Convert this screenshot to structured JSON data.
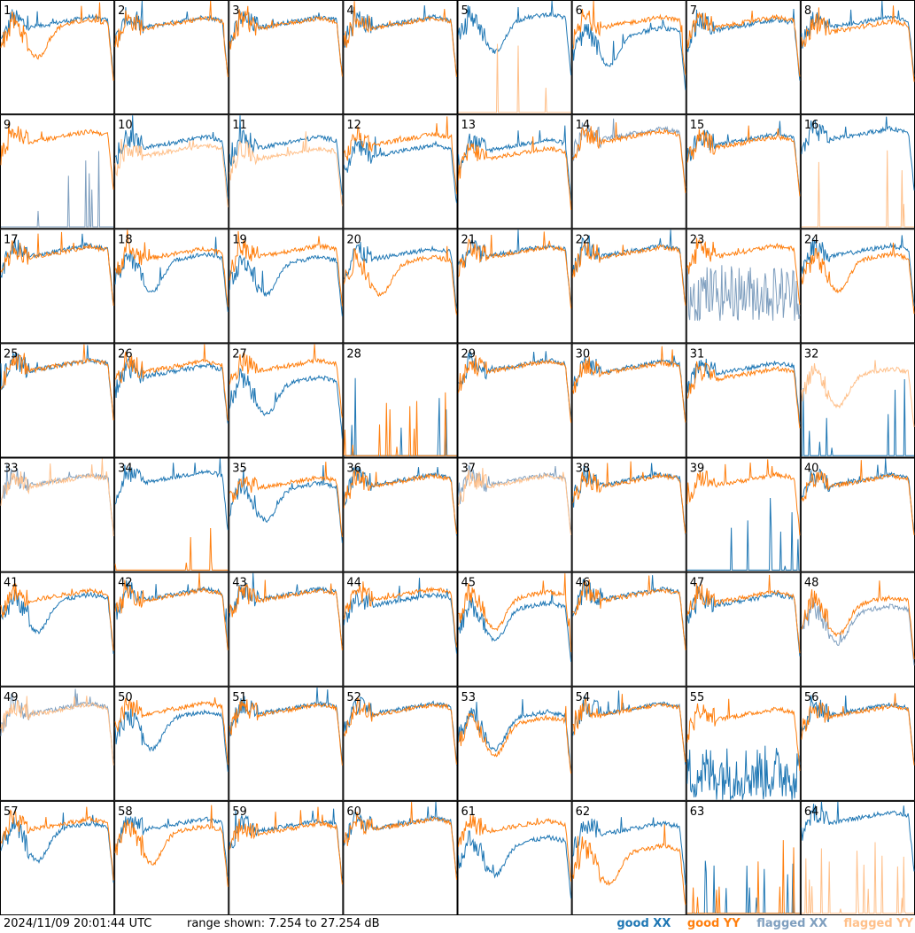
{
  "footer": {
    "timestamp": "2024/11/09 20:01:44 UTC",
    "range_text": "range shown: 7.254 to 27.254 dB",
    "legend": {
      "good_xx": "good XX",
      "good_yy": "good YY",
      "flagged_xx": "flagged XX",
      "flagged_yy": "flagged YY"
    }
  },
  "colors": {
    "good_xx": "#1f77b4",
    "good_yy": "#ff7f0e",
    "flagged_xx": "#7f9fbf",
    "flagged_yy": "#ffc08a"
  },
  "chart_data": {
    "type": "line",
    "rows": 8,
    "cols": 8,
    "ylim": [
      7.254,
      27.254
    ],
    "panels": [
      {
        "n": "1",
        "xx": {
          "s": "good",
          "p": "flat",
          "lvl": 23.0
        },
        "yy": {
          "s": "good",
          "p": "dip",
          "lvl": 22.5
        }
      },
      {
        "n": "2",
        "xx": {
          "s": "good",
          "p": "flat",
          "lvl": 23.0
        },
        "yy": {
          "s": "good",
          "p": "flat",
          "lvl": 22.8
        }
      },
      {
        "n": "3",
        "xx": {
          "s": "good",
          "p": "flat",
          "lvl": 23.0
        },
        "yy": {
          "s": "good",
          "p": "flat",
          "lvl": 22.8
        }
      },
      {
        "n": "4",
        "xx": {
          "s": "good",
          "p": "flat",
          "lvl": 23.0
        },
        "yy": {
          "s": "good",
          "p": "flat",
          "lvl": 22.8
        }
      },
      {
        "n": "5",
        "xx": {
          "s": "good",
          "p": "dip",
          "lvl": 23.5
        },
        "yy": {
          "s": "flagged",
          "p": "spikes",
          "lvl": 9.0
        }
      },
      {
        "n": "6",
        "xx": {
          "s": "good",
          "p": "dip",
          "lvl": 21.0
        },
        "yy": {
          "s": "good",
          "p": "flat",
          "lvl": 23.0
        }
      },
      {
        "n": "7",
        "xx": {
          "s": "good",
          "p": "flat",
          "lvl": 22.5
        },
        "yy": {
          "s": "good",
          "p": "flat",
          "lvl": 23.0
        }
      },
      {
        "n": "8",
        "xx": {
          "s": "good",
          "p": "flat",
          "lvl": 23.0
        },
        "yy": {
          "s": "good",
          "p": "flat",
          "lvl": 22.2
        }
      },
      {
        "n": "9",
        "xx": {
          "s": "flagged",
          "p": "spikes",
          "lvl": 10.0
        },
        "yy": {
          "s": "good",
          "p": "flat",
          "lvl": 23.0
        }
      },
      {
        "n": "10",
        "xx": {
          "s": "good",
          "p": "flat",
          "lvl": 22.0
        },
        "yy": {
          "s": "flagged",
          "p": "flat",
          "lvl": 20.5
        }
      },
      {
        "n": "11",
        "xx": {
          "s": "good",
          "p": "flat",
          "lvl": 22.0
        },
        "yy": {
          "s": "flagged",
          "p": "flat",
          "lvl": 20.0
        }
      },
      {
        "n": "12",
        "xx": {
          "s": "good",
          "p": "flat",
          "lvl": 20.5
        },
        "yy": {
          "s": "good",
          "p": "flat",
          "lvl": 22.5
        }
      },
      {
        "n": "13",
        "xx": {
          "s": "good",
          "p": "flat",
          "lvl": 21.5
        },
        "yy": {
          "s": "good",
          "p": "flat",
          "lvl": 20.0
        }
      },
      {
        "n": "14",
        "xx": {
          "s": "flagged",
          "p": "flat",
          "lvl": 23.5
        },
        "yy": {
          "s": "good",
          "p": "flat",
          "lvl": 23.0
        }
      },
      {
        "n": "15",
        "xx": {
          "s": "good",
          "p": "flat",
          "lvl": 22.5
        },
        "yy": {
          "s": "good",
          "p": "flat",
          "lvl": 22.0
        }
      },
      {
        "n": "16",
        "xx": {
          "s": "good",
          "p": "flat",
          "lvl": 23.5
        },
        "yy": {
          "s": "flagged",
          "p": "spikes",
          "lvl": 9.0
        }
      },
      {
        "n": "17",
        "xx": {
          "s": "good",
          "p": "flat",
          "lvl": 23.0
        },
        "yy": {
          "s": "good",
          "p": "flat",
          "lvl": 22.8
        }
      },
      {
        "n": "18",
        "xx": {
          "s": "good",
          "p": "dip",
          "lvl": 21.5
        },
        "yy": {
          "s": "good",
          "p": "flat",
          "lvl": 22.5
        }
      },
      {
        "n": "19",
        "xx": {
          "s": "good",
          "p": "dip",
          "lvl": 21.0
        },
        "yy": {
          "s": "good",
          "p": "flat",
          "lvl": 23.0
        }
      },
      {
        "n": "20",
        "xx": {
          "s": "good",
          "p": "flat",
          "lvl": 22.5
        },
        "yy": {
          "s": "good",
          "p": "dip",
          "lvl": 21.0
        }
      },
      {
        "n": "21",
        "xx": {
          "s": "good",
          "p": "flat",
          "lvl": 23.0
        },
        "yy": {
          "s": "good",
          "p": "flat",
          "lvl": 22.8
        }
      },
      {
        "n": "22",
        "xx": {
          "s": "good",
          "p": "flat",
          "lvl": 23.0
        },
        "yy": {
          "s": "good",
          "p": "flat",
          "lvl": 22.8
        }
      },
      {
        "n": "23",
        "xx": {
          "s": "flagged",
          "p": "noise",
          "lvl": 16.0
        },
        "yy": {
          "s": "good",
          "p": "flat",
          "lvl": 23.0
        }
      },
      {
        "n": "24",
        "xx": {
          "s": "good",
          "p": "flat",
          "lvl": 23.0
        },
        "yy": {
          "s": "good",
          "p": "dip",
          "lvl": 21.5
        }
      },
      {
        "n": "25",
        "xx": {
          "s": "good",
          "p": "flat",
          "lvl": 23.0
        },
        "yy": {
          "s": "good",
          "p": "flat",
          "lvl": 23.0
        }
      },
      {
        "n": "26",
        "xx": {
          "s": "good",
          "p": "flat",
          "lvl": 22.0
        },
        "yy": {
          "s": "good",
          "p": "flat",
          "lvl": 22.8
        }
      },
      {
        "n": "27",
        "xx": {
          "s": "good",
          "p": "dip",
          "lvl": 20.0
        },
        "yy": {
          "s": "good",
          "p": "flat",
          "lvl": 23.0
        }
      },
      {
        "n": "28",
        "xx": {
          "s": "good",
          "p": "spikes",
          "lvl": 9.0
        },
        "yy": {
          "s": "good",
          "p": "spikes",
          "lvl": 10.0
        }
      },
      {
        "n": "29",
        "xx": {
          "s": "good",
          "p": "flat",
          "lvl": 23.0
        },
        "yy": {
          "s": "good",
          "p": "flat",
          "lvl": 22.8
        }
      },
      {
        "n": "30",
        "xx": {
          "s": "good",
          "p": "flat",
          "lvl": 22.8
        },
        "yy": {
          "s": "good",
          "p": "flat",
          "lvl": 22.5
        }
      },
      {
        "n": "31",
        "xx": {
          "s": "good",
          "p": "flat",
          "lvl": 22.5
        },
        "yy": {
          "s": "good",
          "p": "flat",
          "lvl": 21.5
        }
      },
      {
        "n": "32",
        "xx": {
          "s": "good",
          "p": "spikes",
          "lvl": 9.0
        },
        "yy": {
          "s": "flagged",
          "p": "dip",
          "lvl": 21.5
        }
      },
      {
        "n": "33",
        "xx": {
          "s": "flagged",
          "p": "flat",
          "lvl": 23.0
        },
        "yy": {
          "s": "flagged",
          "p": "flat",
          "lvl": 22.8
        }
      },
      {
        "n": "34",
        "xx": {
          "s": "good",
          "p": "flat",
          "lvl": 23.5
        },
        "yy": {
          "s": "good",
          "p": "spikes",
          "lvl": 10.0
        }
      },
      {
        "n": "35",
        "xx": {
          "s": "good",
          "p": "dip",
          "lvl": 21.5
        },
        "yy": {
          "s": "good",
          "p": "flat",
          "lvl": 22.5
        }
      },
      {
        "n": "36",
        "xx": {
          "s": "good",
          "p": "flat",
          "lvl": 23.0
        },
        "yy": {
          "s": "good",
          "p": "flat",
          "lvl": 22.8
        }
      },
      {
        "n": "37",
        "xx": {
          "s": "flagged",
          "p": "flat",
          "lvl": 23.0
        },
        "yy": {
          "s": "flagged",
          "p": "flat",
          "lvl": 22.8
        }
      },
      {
        "n": "38",
        "xx": {
          "s": "good",
          "p": "flat",
          "lvl": 23.0
        },
        "yy": {
          "s": "good",
          "p": "flat",
          "lvl": 22.8
        }
      },
      {
        "n": "39",
        "xx": {
          "s": "good",
          "p": "spikes",
          "lvl": 9.0
        },
        "yy": {
          "s": "good",
          "p": "flat",
          "lvl": 23.0
        }
      },
      {
        "n": "40",
        "xx": {
          "s": "good",
          "p": "flat",
          "lvl": 23.0
        },
        "yy": {
          "s": "good",
          "p": "flat",
          "lvl": 22.8
        }
      },
      {
        "n": "41",
        "xx": {
          "s": "good",
          "p": "dip",
          "lvl": 22.0
        },
        "yy": {
          "s": "good",
          "p": "flat",
          "lvl": 22.8
        }
      },
      {
        "n": "42",
        "xx": {
          "s": "good",
          "p": "flat",
          "lvl": 23.0
        },
        "yy": {
          "s": "good",
          "p": "flat",
          "lvl": 22.8
        }
      },
      {
        "n": "43",
        "xx": {
          "s": "good",
          "p": "flat",
          "lvl": 23.0
        },
        "yy": {
          "s": "good",
          "p": "flat",
          "lvl": 22.8
        }
      },
      {
        "n": "44",
        "xx": {
          "s": "good",
          "p": "flat",
          "lvl": 22.0
        },
        "yy": {
          "s": "good",
          "p": "flat",
          "lvl": 23.0
        }
      },
      {
        "n": "45",
        "xx": {
          "s": "good",
          "p": "dip",
          "lvl": 20.5
        },
        "yy": {
          "s": "good",
          "p": "dip",
          "lvl": 22.5
        }
      },
      {
        "n": "46",
        "xx": {
          "s": "good",
          "p": "flat",
          "lvl": 23.0
        },
        "yy": {
          "s": "good",
          "p": "flat",
          "lvl": 22.8
        }
      },
      {
        "n": "47",
        "xx": {
          "s": "good",
          "p": "flat",
          "lvl": 22.0
        },
        "yy": {
          "s": "good",
          "p": "flat",
          "lvl": 22.5
        }
      },
      {
        "n": "48",
        "xx": {
          "s": "flagged",
          "p": "dip",
          "lvl": 20.0
        },
        "yy": {
          "s": "good",
          "p": "dip",
          "lvl": 21.5
        }
      },
      {
        "n": "49",
        "xx": {
          "s": "flagged",
          "p": "flat",
          "lvl": 23.0
        },
        "yy": {
          "s": "flagged",
          "p": "flat",
          "lvl": 22.8
        }
      },
      {
        "n": "50",
        "xx": {
          "s": "good",
          "p": "dip",
          "lvl": 21.5
        },
        "yy": {
          "s": "good",
          "p": "flat",
          "lvl": 23.0
        }
      },
      {
        "n": "51",
        "xx": {
          "s": "good",
          "p": "flat",
          "lvl": 23.0
        },
        "yy": {
          "s": "good",
          "p": "flat",
          "lvl": 22.8
        }
      },
      {
        "n": "52",
        "xx": {
          "s": "good",
          "p": "flat",
          "lvl": 23.0
        },
        "yy": {
          "s": "good",
          "p": "flat",
          "lvl": 22.8
        }
      },
      {
        "n": "53",
        "xx": {
          "s": "good",
          "p": "dip",
          "lvl": 21.5
        },
        "yy": {
          "s": "good",
          "p": "dip",
          "lvl": 20.5
        }
      },
      {
        "n": "54",
        "xx": {
          "s": "good",
          "p": "flat",
          "lvl": 23.0
        },
        "yy": {
          "s": "good",
          "p": "flat",
          "lvl": 22.8
        }
      },
      {
        "n": "55",
        "xx": {
          "s": "good",
          "p": "noise",
          "lvl": 12.0
        },
        "yy": {
          "s": "good",
          "p": "flat",
          "lvl": 22.0
        }
      },
      {
        "n": "56",
        "xx": {
          "s": "good",
          "p": "flat",
          "lvl": 22.8
        },
        "yy": {
          "s": "good",
          "p": "flat",
          "lvl": 22.5
        }
      },
      {
        "n": "57",
        "xx": {
          "s": "good",
          "p": "dip",
          "lvl": 22.0
        },
        "yy": {
          "s": "good",
          "p": "flat",
          "lvl": 22.8
        }
      },
      {
        "n": "58",
        "xx": {
          "s": "good",
          "p": "flat",
          "lvl": 22.8
        },
        "yy": {
          "s": "good",
          "p": "dip",
          "lvl": 21.5
        }
      },
      {
        "n": "59",
        "xx": {
          "s": "good",
          "p": "flat",
          "lvl": 22.5
        },
        "yy": {
          "s": "good",
          "p": "flat",
          "lvl": 22.0
        }
      },
      {
        "n": "60",
        "xx": {
          "s": "good",
          "p": "flat",
          "lvl": 23.0
        },
        "yy": {
          "s": "good",
          "p": "flat",
          "lvl": 22.8
        }
      },
      {
        "n": "61",
        "xx": {
          "s": "good",
          "p": "dip",
          "lvl": 19.5
        },
        "yy": {
          "s": "good",
          "p": "flat",
          "lvl": 22.5
        }
      },
      {
        "n": "62",
        "xx": {
          "s": "good",
          "p": "flat",
          "lvl": 22.0
        },
        "yy": {
          "s": "good",
          "p": "dip",
          "lvl": 18.0
        }
      },
      {
        "n": "63",
        "xx": {
          "s": "good",
          "p": "spikes",
          "lvl": 9.0
        },
        "yy": {
          "s": "good",
          "p": "spikes",
          "lvl": 10.0
        }
      },
      {
        "n": "64",
        "xx": {
          "s": "good",
          "p": "flat",
          "lvl": 24.0
        },
        "yy": {
          "s": "flagged",
          "p": "spikes",
          "lvl": 9.0
        }
      }
    ]
  }
}
